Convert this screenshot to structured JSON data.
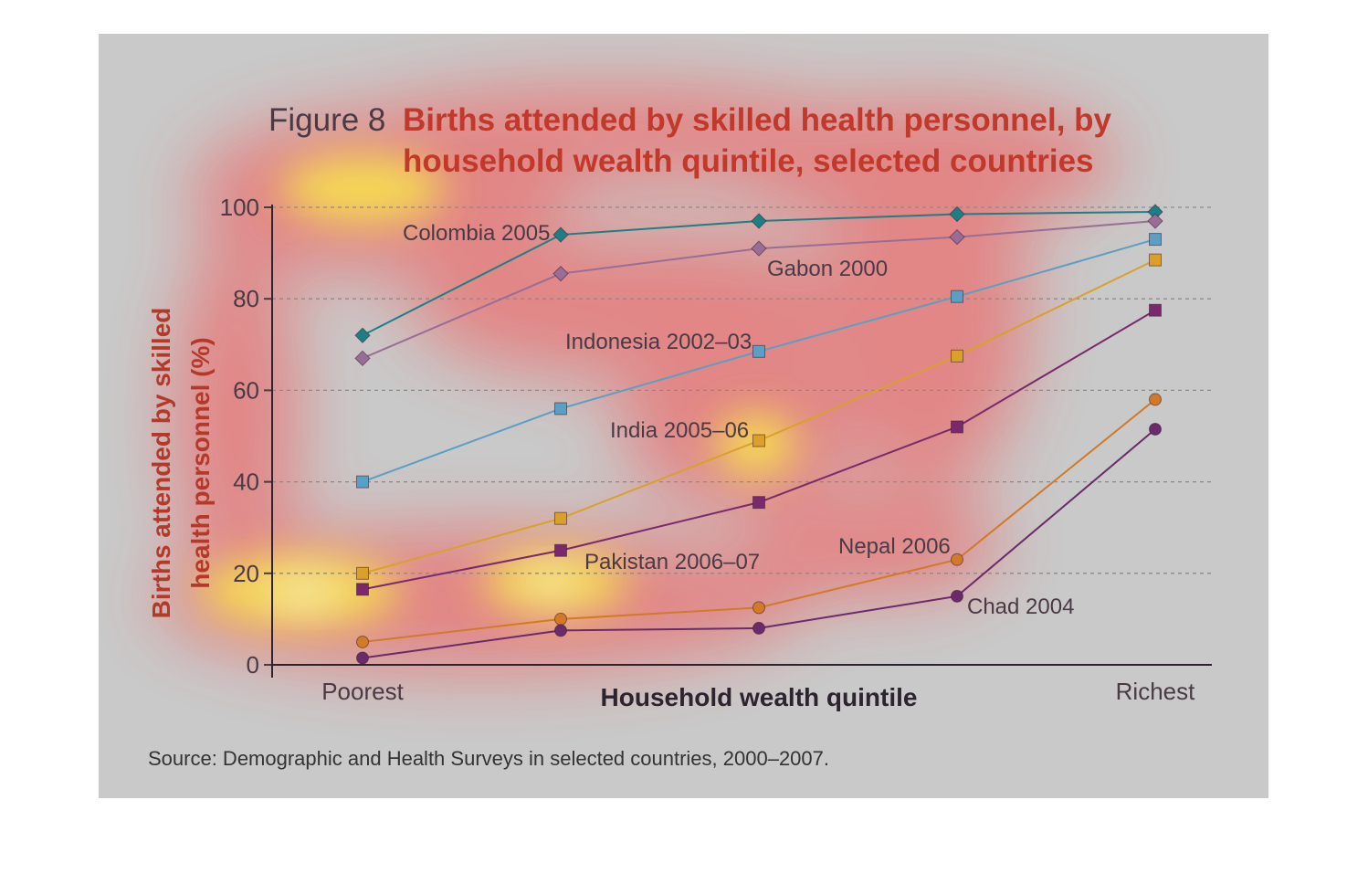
{
  "figure_number": "Figure 8",
  "title_lines": [
    "Births attended by skilled health personnel, by",
    "household wealth quintile, selected countries"
  ],
  "source": "Source: Demographic and Health Surveys in selected countries, 2000–2007.",
  "chart_data": {
    "type": "line",
    "title": "Births attended by skilled health personnel, by household wealth quintile, selected countries",
    "xlabel": "Household wealth quintile",
    "ylabel_lines": [
      "Births attended by skilled",
      "health personnel (%)"
    ],
    "categories": [
      "Poorest",
      "",
      "",
      "",
      "Richest"
    ],
    "ylim": [
      0,
      100
    ],
    "yticks": [
      0,
      20,
      40,
      60,
      80,
      100
    ],
    "grid": true,
    "series": [
      {
        "name": "Colombia 2005",
        "marker": "diamond",
        "color": "#1d7f86",
        "values": [
          72,
          94,
          97,
          98.5,
          99
        ]
      },
      {
        "name": "Gabon 2000",
        "marker": "diamond",
        "color": "#9a6d97",
        "values": [
          67,
          85.5,
          91,
          93.5,
          97
        ]
      },
      {
        "name": "Indonesia 2002–03",
        "marker": "square",
        "color": "#5a9fc4",
        "values": [
          40,
          56,
          68.5,
          80.5,
          93
        ]
      },
      {
        "name": "India 2005–06",
        "marker": "square",
        "color": "#d9a12a",
        "values": [
          20,
          32,
          49,
          67.5,
          88.5
        ]
      },
      {
        "name": "Pakistan 2006–07",
        "marker": "square",
        "color": "#7a2a6c",
        "values": [
          16.5,
          25,
          35.5,
          52,
          77.5
        ]
      },
      {
        "name": "Nepal 2006",
        "marker": "circle",
        "color": "#d27a2a",
        "values": [
          5,
          10,
          12.5,
          23,
          58
        ]
      },
      {
        "name": "Chad 2004",
        "marker": "circle",
        "color": "#6b2a6a",
        "values": [
          1.5,
          7.5,
          8,
          15,
          51.5
        ]
      }
    ]
  }
}
